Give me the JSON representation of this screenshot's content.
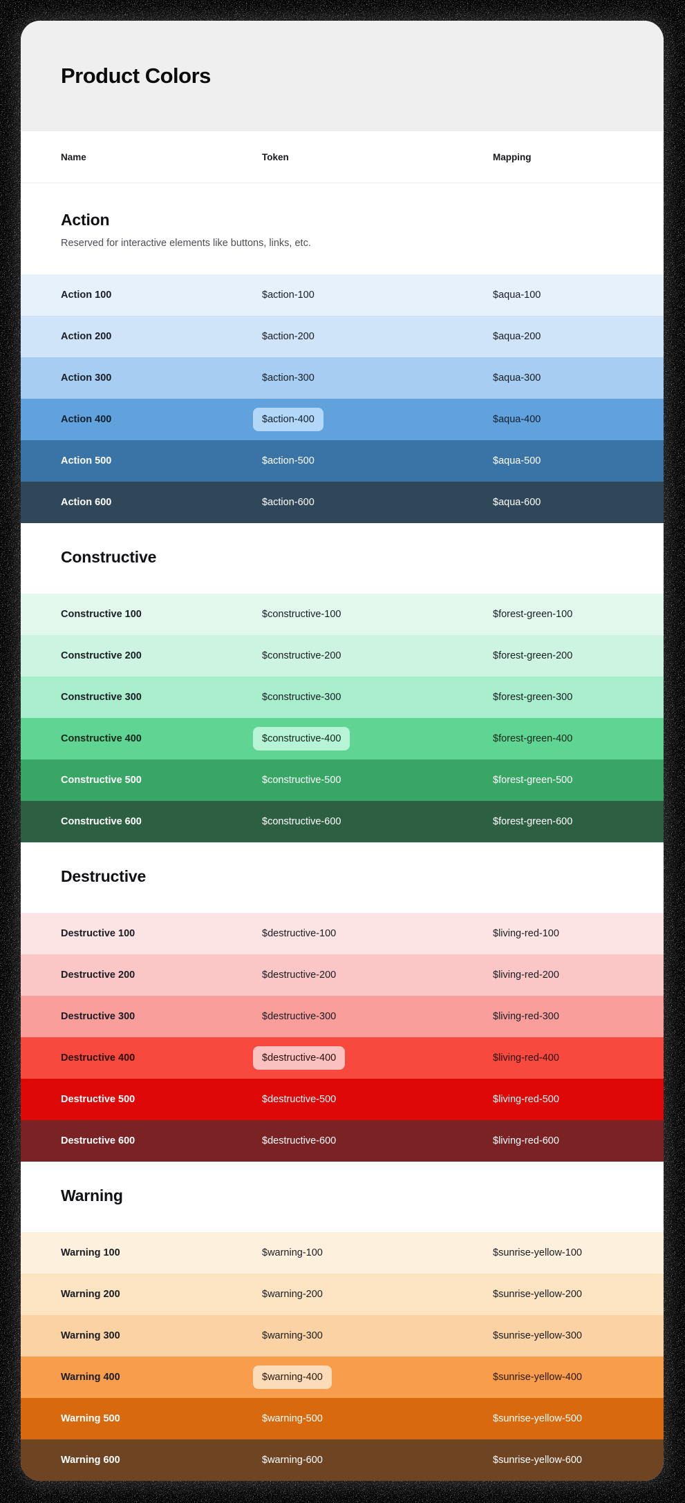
{
  "title": "Product Colors",
  "columns": [
    "Name",
    "Token",
    "Mapping"
  ],
  "theme": {
    "page_bg": "#000000",
    "card_bg": "#ffffff",
    "hero_bg": "#efefef",
    "divider": "#ececec",
    "heading_color": "#101114",
    "description_color": "#4c4d55",
    "dark_text": "#191d24",
    "light_text": "#ffffff"
  },
  "sections": [
    {
      "name": "Action",
      "description": "Reserved for interactive elements like buttons, links, etc.",
      "rows": [
        {
          "name": "Action 100",
          "token": "$action-100",
          "mapping": "$aqua-100",
          "bg": "#e6f1fc",
          "text": "#191d24"
        },
        {
          "name": "Action 200",
          "token": "$action-200",
          "mapping": "$aqua-200",
          "bg": "#cfe3f9",
          "text": "#191d24"
        },
        {
          "name": "Action 300",
          "token": "$action-300",
          "mapping": "$aqua-300",
          "bg": "#a7cef2",
          "text": "#191d24"
        },
        {
          "name": "Action 400",
          "token": "$action-400",
          "mapping": "$aqua-400",
          "bg": "#61a2dd",
          "text": "#10202e",
          "chip_bg": "#b3d7f7"
        },
        {
          "name": "Action 500",
          "token": "$action-500",
          "mapping": "$aqua-500",
          "bg": "#3a74a6",
          "text": "#ffffff"
        },
        {
          "name": "Action 600",
          "token": "$action-600",
          "mapping": "$aqua-600",
          "bg": "#2f4758",
          "text": "#ffffff"
        }
      ]
    },
    {
      "name": "Constructive",
      "description": "",
      "rows": [
        {
          "name": "Constructive 100",
          "token": "$constructive-100",
          "mapping": "$forest-green-100",
          "bg": "#e3f8ed",
          "text": "#191d24"
        },
        {
          "name": "Constructive 200",
          "token": "$constructive-200",
          "mapping": "$forest-green-200",
          "bg": "#cdf4e0",
          "text": "#191d24"
        },
        {
          "name": "Constructive 300",
          "token": "$constructive-300",
          "mapping": "$forest-green-300",
          "bg": "#a8eecd",
          "text": "#191d24"
        },
        {
          "name": "Constructive 400",
          "token": "$constructive-400",
          "mapping": "$forest-green-400",
          "bg": "#60d492",
          "text": "#0f2619",
          "chip_bg": "#b7f3d5"
        },
        {
          "name": "Constructive 500",
          "token": "$constructive-500",
          "mapping": "$forest-green-500",
          "bg": "#38a766",
          "text": "#ffffff"
        },
        {
          "name": "Constructive 600",
          "token": "$constructive-600",
          "mapping": "$forest-green-600",
          "bg": "#2d5f43",
          "text": "#ffffff"
        }
      ]
    },
    {
      "name": "Destructive",
      "description": "",
      "rows": [
        {
          "name": "Destructive 100",
          "token": "$destructive-100",
          "mapping": "$living-red-100",
          "bg": "#fce3e4",
          "text": "#191d24"
        },
        {
          "name": "Destructive 200",
          "token": "$destructive-200",
          "mapping": "$living-red-200",
          "bg": "#fbc7c6",
          "text": "#191d24"
        },
        {
          "name": "Destructive 300",
          "token": "$destructive-300",
          "mapping": "$living-red-300",
          "bg": "#f99e9b",
          "text": "#191d24"
        },
        {
          "name": "Destructive 400",
          "token": "$destructive-400",
          "mapping": "$living-red-400",
          "bg": "#f8493f",
          "text": "#2b0d0b",
          "chip_bg": "#fbc1c0"
        },
        {
          "name": "Destructive 500",
          "token": "$destructive-500",
          "mapping": "$living-red-500",
          "bg": "#de0808",
          "text": "#ffffff"
        },
        {
          "name": "Destructive 600",
          "token": "$destructive-600",
          "mapping": "$living-red-600",
          "bg": "#7b2224",
          "text": "#ffffff"
        }
      ]
    },
    {
      "name": "Warning",
      "description": "",
      "rows": [
        {
          "name": "Warning 100",
          "token": "$warning-100",
          "mapping": "$sunrise-yellow-100",
          "bg": "#fdf0dd",
          "text": "#191d24"
        },
        {
          "name": "Warning 200",
          "token": "$warning-200",
          "mapping": "$sunrise-yellow-200",
          "bg": "#fce3c2",
          "text": "#191d24"
        },
        {
          "name": "Warning 300",
          "token": "$warning-300",
          "mapping": "$sunrise-yellow-300",
          "bg": "#fad2a3",
          "text": "#191d24"
        },
        {
          "name": "Warning 400",
          "token": "$warning-400",
          "mapping": "$sunrise-yellow-400",
          "bg": "#f89d4b",
          "text": "#2a1708",
          "chip_bg": "#fcdcb8",
          "name_text": "#191d24"
        },
        {
          "name": "Warning 500",
          "token": "$warning-500",
          "mapping": "$sunrise-yellow-500",
          "bg": "#d8690f",
          "text": "#ffffff"
        },
        {
          "name": "Warning 600",
          "token": "$warning-600",
          "mapping": "$sunrise-yellow-600",
          "bg": "#6e4423",
          "text": "#ffffff"
        }
      ]
    }
  ]
}
